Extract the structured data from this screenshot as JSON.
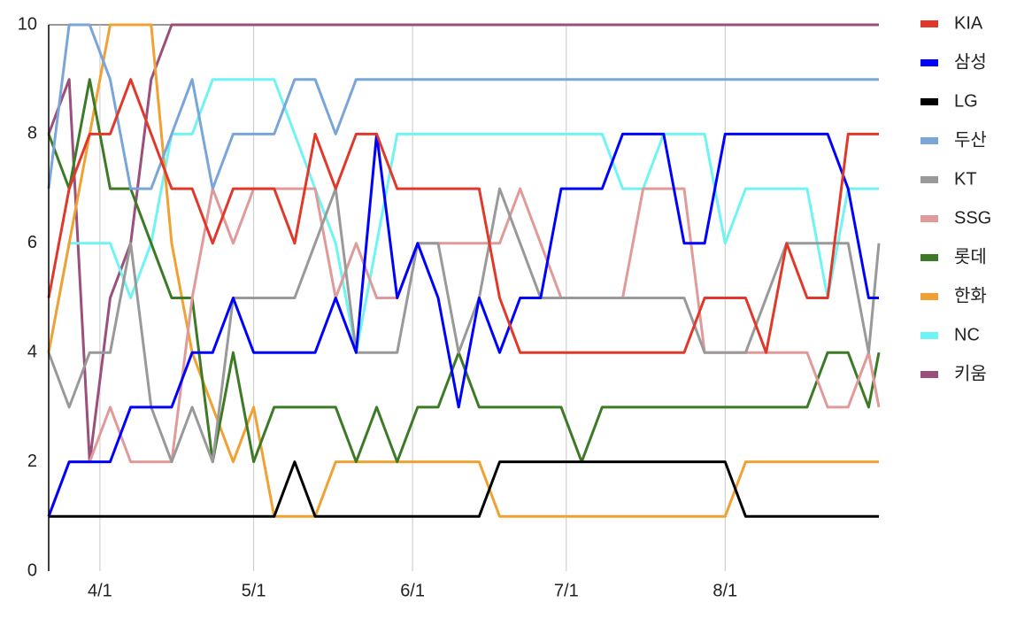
{
  "chart_data": {
    "type": "line",
    "x": [
      82,
      86,
      90,
      94,
      98,
      102,
      106,
      110,
      114,
      118,
      122,
      126,
      130,
      134,
      138,
      142,
      146,
      150,
      154,
      158,
      162,
      166,
      170,
      174,
      178,
      182,
      186,
      190,
      194,
      198,
      202,
      206,
      210,
      214,
      218,
      222,
      226,
      230,
      234,
      238,
      242,
      244
    ],
    "xlim": [
      82,
      244
    ],
    "xticks": [
      {
        "value": 92,
        "label": "4/1"
      },
      {
        "value": 122,
        "label": "5/1"
      },
      {
        "value": 153,
        "label": "6/1"
      },
      {
        "value": 183,
        "label": "7/1"
      },
      {
        "value": 214,
        "label": "8/1"
      }
    ],
    "ylim": [
      0,
      10
    ],
    "yticks": [
      0,
      2,
      4,
      6,
      8,
      10
    ],
    "legend": "right",
    "series": [
      {
        "name": "KIA",
        "color": "#e0392b",
        "values": [
          5,
          7,
          8,
          8,
          9,
          8,
          7,
          7,
          6,
          7,
          7,
          7,
          6,
          8,
          7,
          8,
          8,
          7,
          7,
          7,
          7,
          7,
          5,
          4,
          4,
          4,
          4,
          4,
          4,
          4,
          4,
          4,
          5,
          5,
          5,
          4,
          6,
          5,
          5,
          8,
          8,
          8
        ]
      },
      {
        "name": "삼성",
        "color": "#0000ff",
        "values": [
          1,
          2,
          2,
          2,
          3,
          3,
          3,
          4,
          4,
          5,
          4,
          4,
          4,
          4,
          5,
          4,
          8,
          5,
          6,
          5,
          3,
          5,
          4,
          5,
          5,
          7,
          7,
          7,
          8,
          8,
          8,
          6,
          6,
          8,
          8,
          8,
          8,
          8,
          8,
          7,
          5,
          5
        ]
      },
      {
        "name": "LG",
        "color": "#000000",
        "values": [
          1,
          1,
          1,
          1,
          1,
          1,
          1,
          1,
          1,
          1,
          1,
          1,
          2,
          1,
          1,
          1,
          1,
          1,
          1,
          1,
          1,
          1,
          2,
          2,
          2,
          2,
          2,
          2,
          2,
          2,
          2,
          2,
          2,
          2,
          1,
          1,
          1,
          1,
          1,
          1,
          1,
          1
        ]
      },
      {
        "name": "두산",
        "color": "#79a5d8",
        "values": [
          7,
          10,
          10,
          9,
          7,
          7,
          8,
          9,
          7,
          8,
          8,
          8,
          9,
          9,
          8,
          9,
          9,
          9,
          9,
          9,
          9,
          9,
          9,
          9,
          9,
          9,
          9,
          9,
          9,
          9,
          9,
          9,
          9,
          9,
          9,
          9,
          9,
          9,
          9,
          9,
          9,
          9
        ]
      },
      {
        "name": "KT",
        "color": "#999999",
        "values": [
          4,
          3,
          4,
          4,
          6,
          3,
          2,
          3,
          2,
          5,
          5,
          5,
          5,
          6,
          7,
          4,
          4,
          4,
          6,
          6,
          4,
          5,
          7,
          6,
          5,
          5,
          5,
          5,
          5,
          5,
          5,
          5,
          4,
          4,
          4,
          5,
          6,
          6,
          6,
          6,
          4,
          6
        ]
      },
      {
        "name": "SSG",
        "color": "#e19a9a",
        "values": [
          1,
          2,
          2,
          3,
          2,
          2,
          2,
          5,
          7,
          6,
          7,
          7,
          7,
          7,
          5,
          6,
          5,
          5,
          6,
          6,
          6,
          6,
          6,
          7,
          6,
          5,
          5,
          5,
          5,
          7,
          7,
          7,
          4,
          4,
          4,
          4,
          4,
          4,
          3,
          3,
          4,
          3
        ]
      },
      {
        "name": "롯데",
        "color": "#3d7a26",
        "values": [
          8,
          7,
          9,
          7,
          7,
          6,
          5,
          5,
          2,
          4,
          2,
          3,
          3,
          3,
          3,
          2,
          3,
          2,
          3,
          3,
          4,
          3,
          3,
          3,
          3,
          3,
          2,
          3,
          3,
          3,
          3,
          3,
          3,
          3,
          3,
          3,
          3,
          3,
          4,
          4,
          3,
          4
        ]
      },
      {
        "name": "한화",
        "color": "#f1a133",
        "values": [
          4,
          6,
          8,
          10,
          10,
          10,
          6,
          4,
          3,
          2,
          3,
          1,
          1,
          1,
          2,
          2,
          2,
          2,
          2,
          2,
          2,
          2,
          1,
          1,
          1,
          1,
          1,
          1,
          1,
          1,
          1,
          1,
          1,
          1,
          2,
          2,
          2,
          2,
          2,
          2,
          2,
          2
        ]
      },
      {
        "name": "NC",
        "color": "#6ff4f4",
        "values": [
          4,
          6,
          6,
          6,
          5,
          6,
          8,
          8,
          9,
          9,
          9,
          9,
          8,
          7,
          6,
          4,
          6,
          8,
          8,
          8,
          8,
          8,
          8,
          8,
          8,
          8,
          8,
          8,
          7,
          7,
          8,
          8,
          8,
          6,
          7,
          7,
          7,
          7,
          5,
          7,
          7,
          7
        ]
      },
      {
        "name": "키움",
        "color": "#9b4f7b",
        "values": [
          8,
          9,
          2,
          5,
          6,
          9,
          10,
          10,
          10,
          10,
          10,
          10,
          10,
          10,
          10,
          10,
          10,
          10,
          10,
          10,
          10,
          10,
          10,
          10,
          10,
          10,
          10,
          10,
          10,
          10,
          10,
          10,
          10,
          10,
          10,
          10,
          10,
          10,
          10,
          10,
          10,
          10
        ]
      }
    ]
  }
}
